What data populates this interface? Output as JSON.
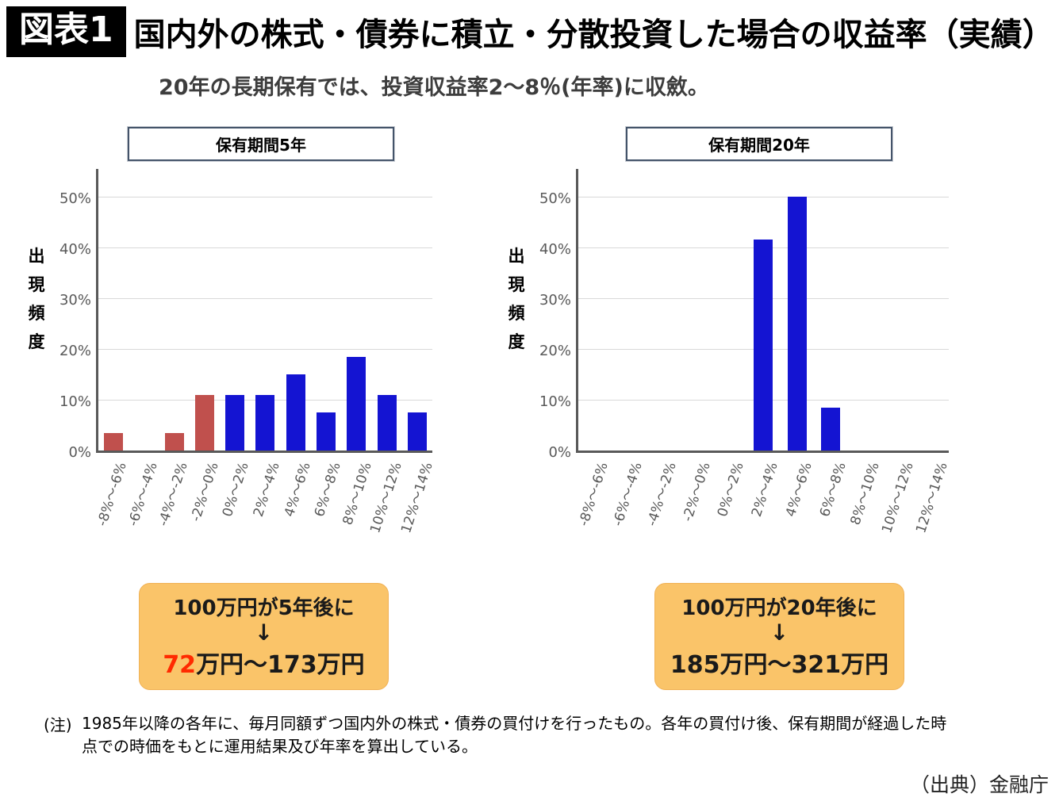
{
  "header": {
    "tag": "図表1",
    "title": "国内外の株式・債券に積立・分散投資した場合の収益率（実績）"
  },
  "subtitle": "20年の長期保有では、投資収益率2～8％(年率)に収斂。",
  "y_axis_label": "出現頻度",
  "chart_data": [
    {
      "type": "bar",
      "title": "保有期間5年",
      "categories": [
        "-8%～-6%",
        "-6%～-4%",
        "-4%～-2%",
        "-2%～0%",
        "0%～2%",
        "2%～4%",
        "4%～6%",
        "6%～8%",
        "8%～10%",
        "10%～12%",
        "12%～14%"
      ],
      "values": [
        3.5,
        0,
        3.5,
        11,
        11,
        11,
        15,
        7.5,
        18.5,
        11,
        7.5
      ],
      "bar_colors": [
        "#C0504D",
        "#C0504D",
        "#C0504D",
        "#C0504D",
        "#1414D2",
        "#1414D2",
        "#1414D2",
        "#1414D2",
        "#1414D2",
        "#1414D2",
        "#1414D2"
      ],
      "xlabel": "",
      "ylabel": "出現頻度",
      "y_ticks": [
        "0%",
        "10%",
        "20%",
        "30%",
        "40%",
        "50%"
      ],
      "ylim": [
        0,
        56
      ],
      "grid": true,
      "legend": "none"
    },
    {
      "type": "bar",
      "title": "保有期間20年",
      "categories": [
        "-8%～-6%",
        "-6%～-4%",
        "-4%～-2%",
        "-2%～0%",
        "0%～2%",
        "2%～4%",
        "4%～6%",
        "6%～8%",
        "8%～10%",
        "10%～12%",
        "12%～14%"
      ],
      "values": [
        0,
        0,
        0,
        0,
        0,
        41.5,
        50,
        8.5,
        0,
        0,
        0
      ],
      "bar_colors": [
        "#1414D2",
        "#1414D2",
        "#1414D2",
        "#1414D2",
        "#1414D2",
        "#1414D2",
        "#1414D2",
        "#1414D2",
        "#1414D2",
        "#1414D2",
        "#1414D2"
      ],
      "xlabel": "",
      "ylabel": "出現頻度",
      "y_ticks": [
        "0%",
        "10%",
        "20%",
        "30%",
        "40%",
        "50%"
      ],
      "ylim": [
        0,
        56
      ],
      "grid": true,
      "legend": "none"
    }
  ],
  "callouts": [
    {
      "line1": "100万円が5年後に",
      "arrow": "↓",
      "result_highlight": "72",
      "result_rest": "万円～173万円"
    },
    {
      "line1": "100万円が20年後に",
      "arrow": "↓",
      "result_highlight": "",
      "result_rest": "185万円～321万円"
    }
  ],
  "note": {
    "label": "(注)",
    "line1": "1985年以降の各年に、毎月同額ずつ国内外の株式・債券の買付けを行ったもの。各年の買付け後、保有期間が経過した時",
    "line2": "点での時価をもとに運用結果及び年率を算出している。"
  },
  "source": "（出典）金融庁",
  "colors": {
    "bar_red": "#C0504D",
    "bar_blue": "#1414D2",
    "callout_bg": "#FAC469",
    "axis": "#595959",
    "gridline": "#D9D9D9",
    "highlight_red": "#FF2A00",
    "title_box_border": "#44546A"
  }
}
